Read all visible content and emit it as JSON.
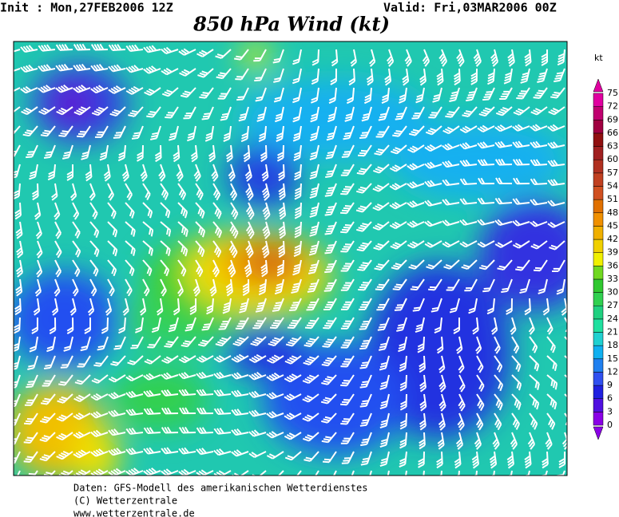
{
  "header": {
    "init": "Init : Mon,27FEB2006 12Z",
    "valid": "Valid: Fri,03MAR2006 00Z",
    "title": "850 hPa Wind (kt)"
  },
  "legend": {
    "unit": "kt",
    "labels": [
      0,
      3,
      6,
      9,
      12,
      15,
      18,
      21,
      24,
      27,
      30,
      33,
      36,
      39,
      42,
      45,
      48,
      51,
      54,
      57,
      60,
      63,
      66,
      69,
      72,
      75
    ]
  },
  "footer": [
    "Daten: GFS-Modell des amerikanischen Wetterdienstes",
    "(C) Wetterzentrale",
    "www.wetterzentrale.de"
  ]
}
